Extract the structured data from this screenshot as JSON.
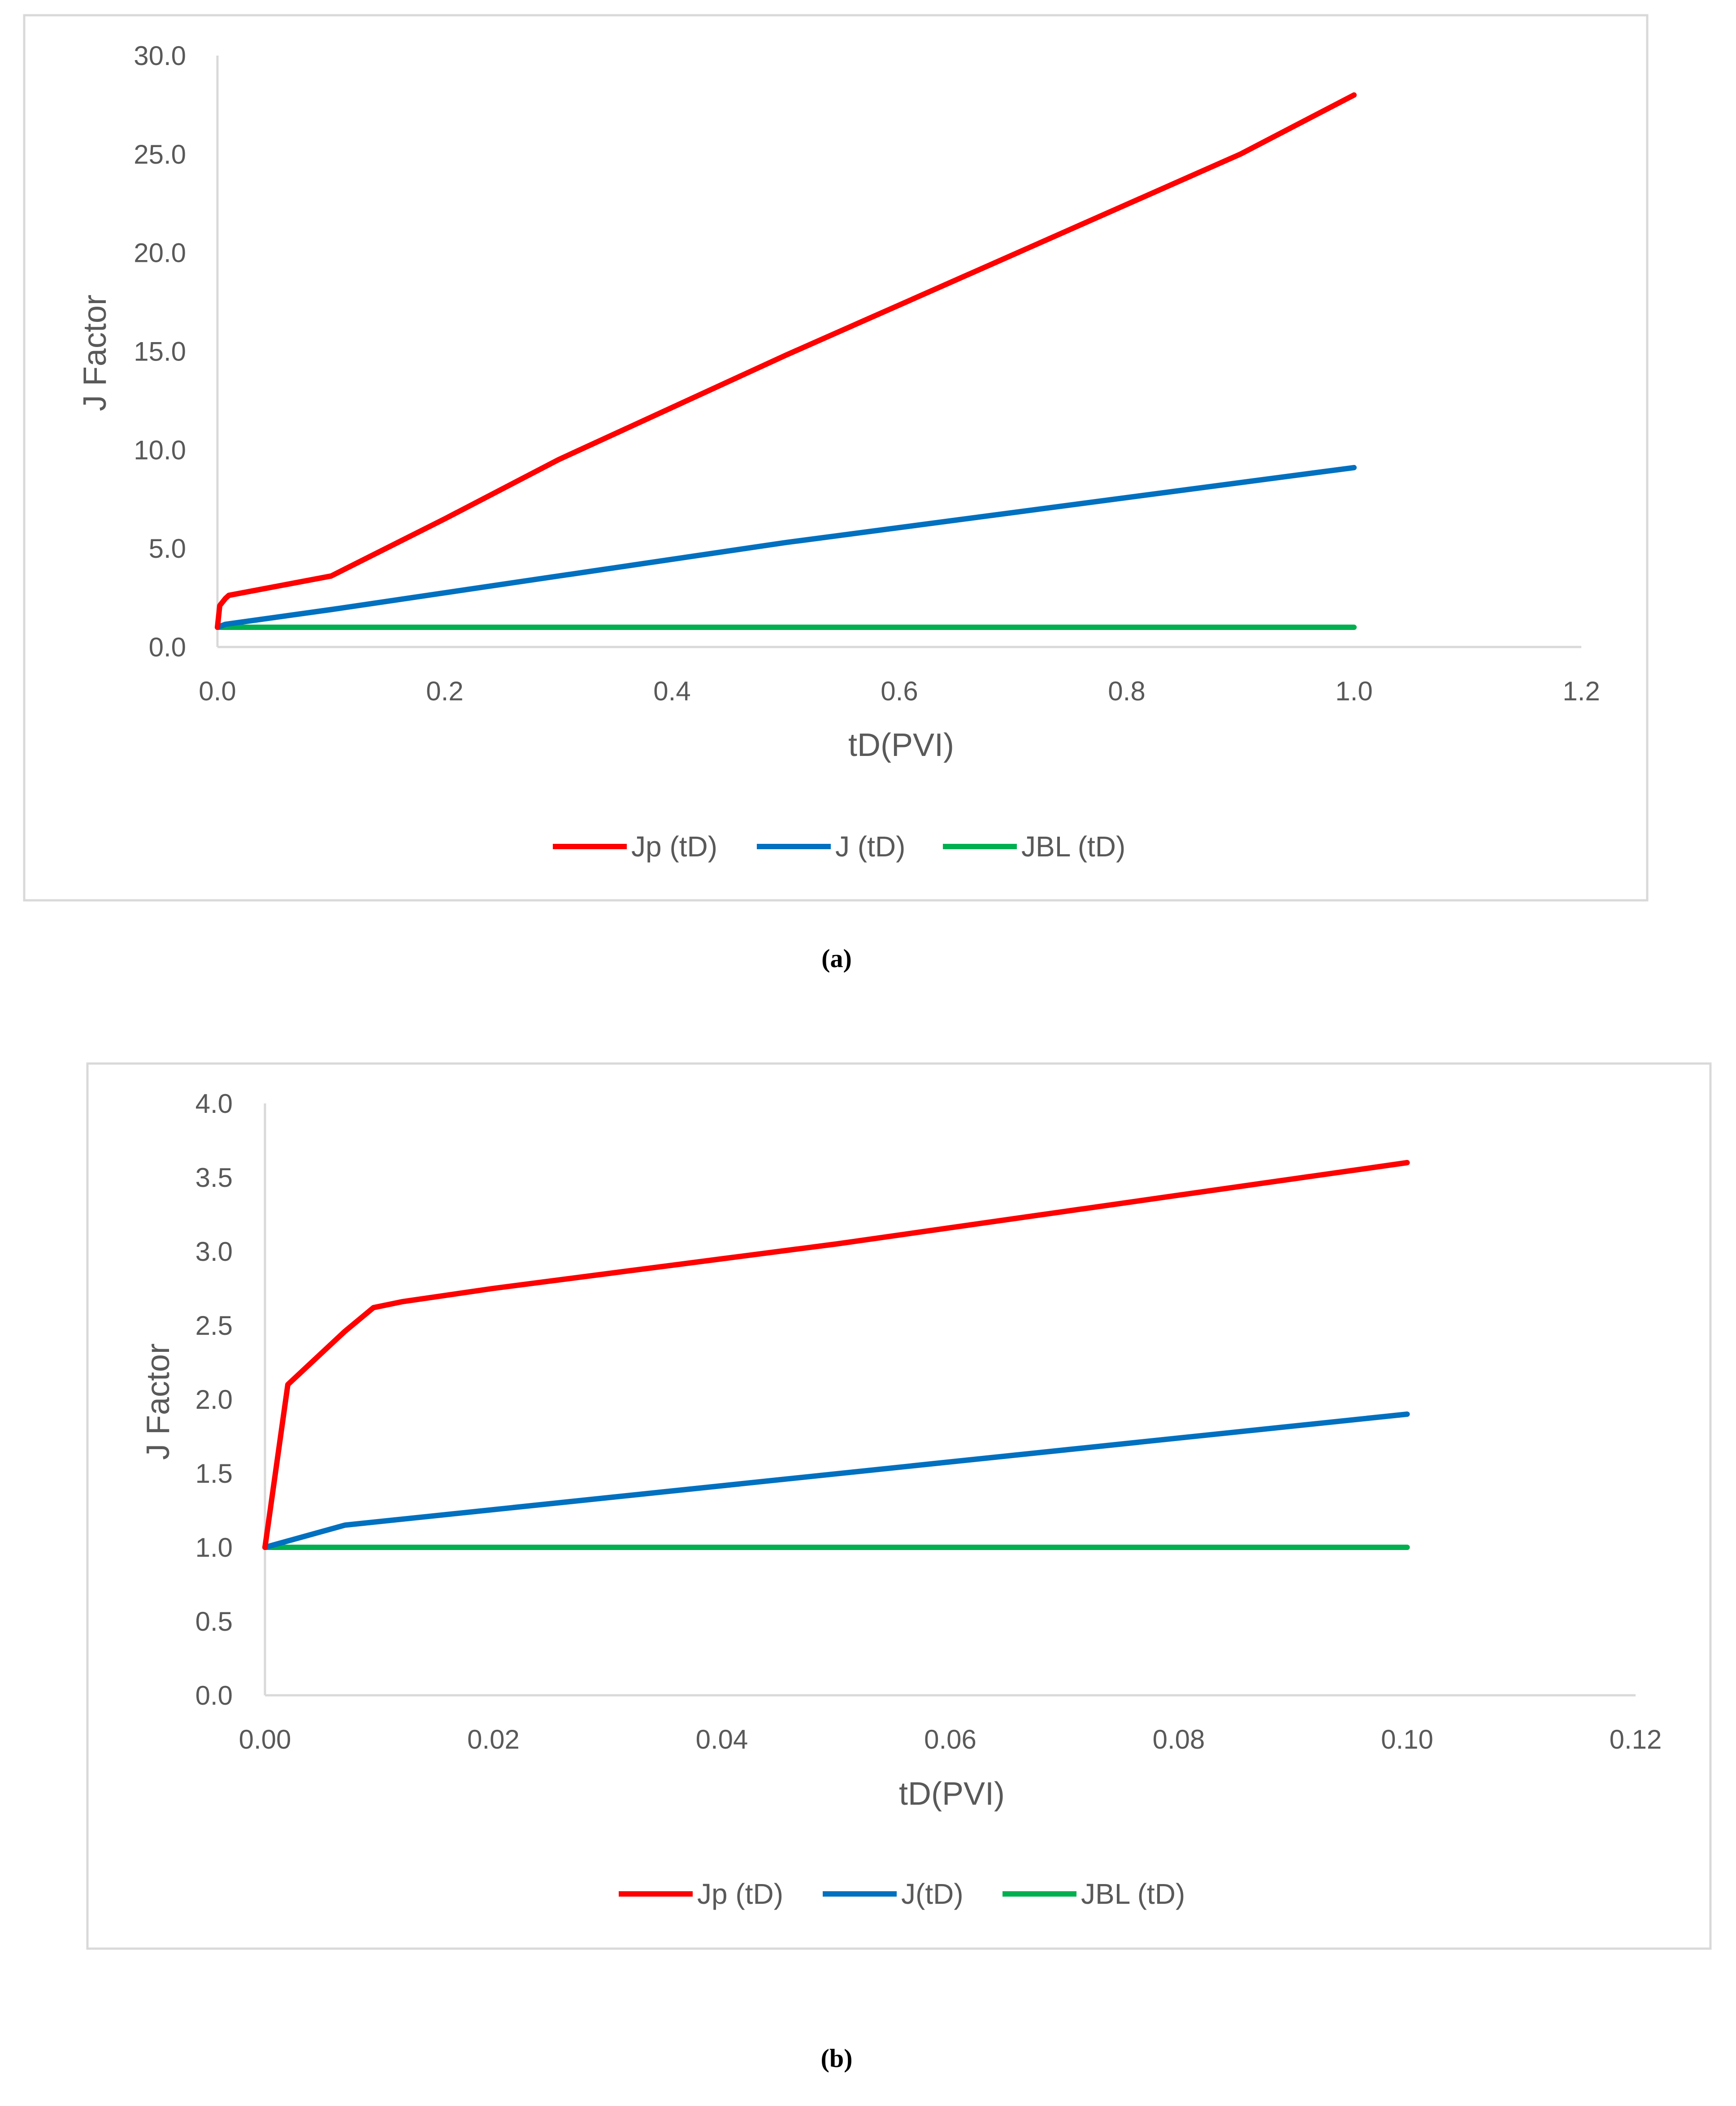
{
  "chart_data": [
    {
      "type": "line",
      "id": "a",
      "caption": "(a)",
      "xlabel": "tD(PVI)",
      "ylabel": "J Factor",
      "xlim": [
        0,
        1.2
      ],
      "ylim": [
        0,
        30
      ],
      "x_ticks": [
        "0.0",
        "0.2",
        "0.4",
        "0.6",
        "0.8",
        "1.0",
        "1.2"
      ],
      "y_ticks": [
        "0.0",
        "5.0",
        "10.0",
        "15.0",
        "20.0",
        "25.0",
        "30.0"
      ],
      "x_tick_values": [
        0,
        0.2,
        0.4,
        0.6,
        0.8,
        1.0,
        1.2
      ],
      "y_tick_values": [
        0,
        5,
        10,
        15,
        20,
        25,
        30
      ],
      "grid": false,
      "legend_position": "bottom",
      "series": [
        {
          "name": "Jp (tD)",
          "color": "#ff0000",
          "x": [
            0,
            0.002,
            0.007,
            0.01,
            0.1,
            0.2,
            0.3,
            0.5,
            0.7,
            0.9,
            1.0
          ],
          "y": [
            1.0,
            2.1,
            2.46,
            2.62,
            3.6,
            6.5,
            9.5,
            14.8,
            19.9,
            25.0,
            28.0
          ]
        },
        {
          "name": "J (tD)",
          "color": "#0070c0",
          "x": [
            0,
            0.007,
            0.1,
            0.5,
            1.0
          ],
          "y": [
            1.0,
            1.15,
            1.9,
            5.3,
            9.1
          ]
        },
        {
          "name": "JBL (tD)",
          "color": "#00b050",
          "x": [
            0,
            1.0
          ],
          "y": [
            1.0,
            1.0
          ]
        }
      ]
    },
    {
      "type": "line",
      "id": "b",
      "caption": "(b)",
      "xlabel": "tD(PVI)",
      "ylabel": "J Factor",
      "xlim": [
        0,
        0.12
      ],
      "ylim": [
        0,
        4
      ],
      "x_ticks": [
        "0.00",
        "0.02",
        "0.04",
        "0.06",
        "0.08",
        "0.10",
        "0.12"
      ],
      "y_ticks": [
        "0.0",
        "0.5",
        "1.0",
        "1.5",
        "2.0",
        "2.5",
        "3.0",
        "3.5",
        "4.0"
      ],
      "x_tick_values": [
        0,
        0.02,
        0.04,
        0.06,
        0.08,
        0.1,
        0.12
      ],
      "y_tick_values": [
        0,
        0.5,
        1.0,
        1.5,
        2.0,
        2.5,
        3.0,
        3.5,
        4.0
      ],
      "grid": false,
      "legend_position": "bottom",
      "series": [
        {
          "name": "Jp (tD)",
          "color": "#ff0000",
          "x": [
            0,
            0.002,
            0.007,
            0.0095,
            0.012,
            0.02,
            0.03,
            0.04,
            0.05,
            0.06,
            0.07,
            0.08,
            0.09,
            0.1
          ],
          "y": [
            1.0,
            2.1,
            2.46,
            2.62,
            2.66,
            2.75,
            2.85,
            2.95,
            3.05,
            3.16,
            3.27,
            3.38,
            3.49,
            3.6
          ]
        },
        {
          "name": "J(tD)",
          "color": "#0070c0",
          "x": [
            0,
            0.007,
            0.1
          ],
          "y": [
            1.0,
            1.15,
            1.9
          ]
        },
        {
          "name": "JBL (tD)",
          "color": "#00b050",
          "x": [
            0,
            0.1
          ],
          "y": [
            1.0,
            1.0
          ]
        }
      ]
    }
  ]
}
